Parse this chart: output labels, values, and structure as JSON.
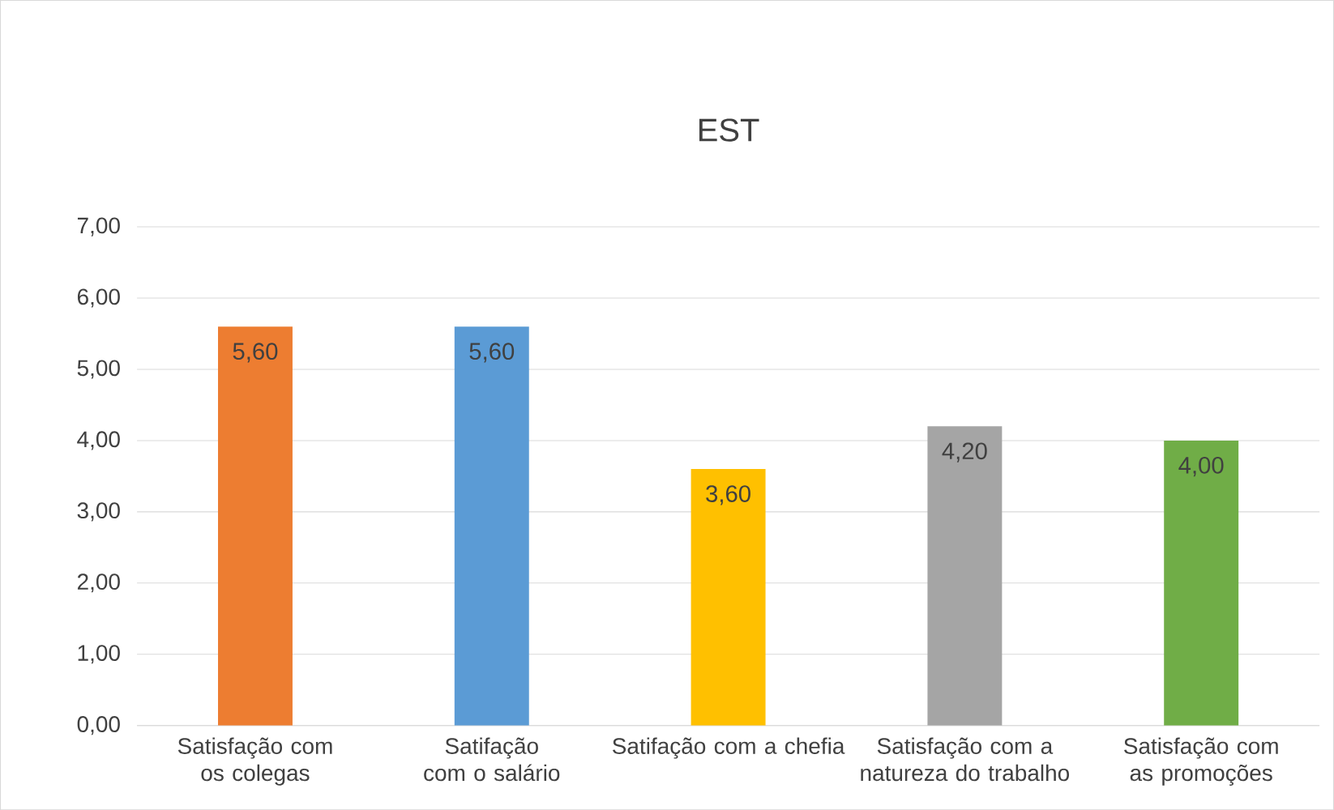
{
  "chart_data": {
    "type": "bar",
    "title": "EST",
    "categories": [
      "Satisfação com os colegas",
      "Satifação com o salário",
      "Satifação com a chefia",
      "Satisfação com a natureza do trabalho",
      "Satisfação com as promoções"
    ],
    "values": [
      5.6,
      5.6,
      3.6,
      4.2,
      4.0
    ],
    "colors": [
      "#ed7d31",
      "#5b9bd5",
      "#ffc000",
      "#a5a5a5",
      "#70ad47"
    ],
    "value_labels": [
      "5,60",
      "5,60",
      "3,60",
      "4,20",
      "4,00"
    ],
    "ylim": [
      0,
      7
    ],
    "yticks": [
      {
        "value": 0,
        "label": "0,00"
      },
      {
        "value": 1,
        "label": "1,00"
      },
      {
        "value": 2,
        "label": "2,00"
      },
      {
        "value": 3,
        "label": "3,00"
      },
      {
        "value": 4,
        "label": "4,00"
      },
      {
        "value": 5,
        "label": "5,00"
      },
      {
        "value": 6,
        "label": "6,00"
      },
      {
        "value": 7,
        "label": "7,00"
      }
    ],
    "grid": "y"
  }
}
